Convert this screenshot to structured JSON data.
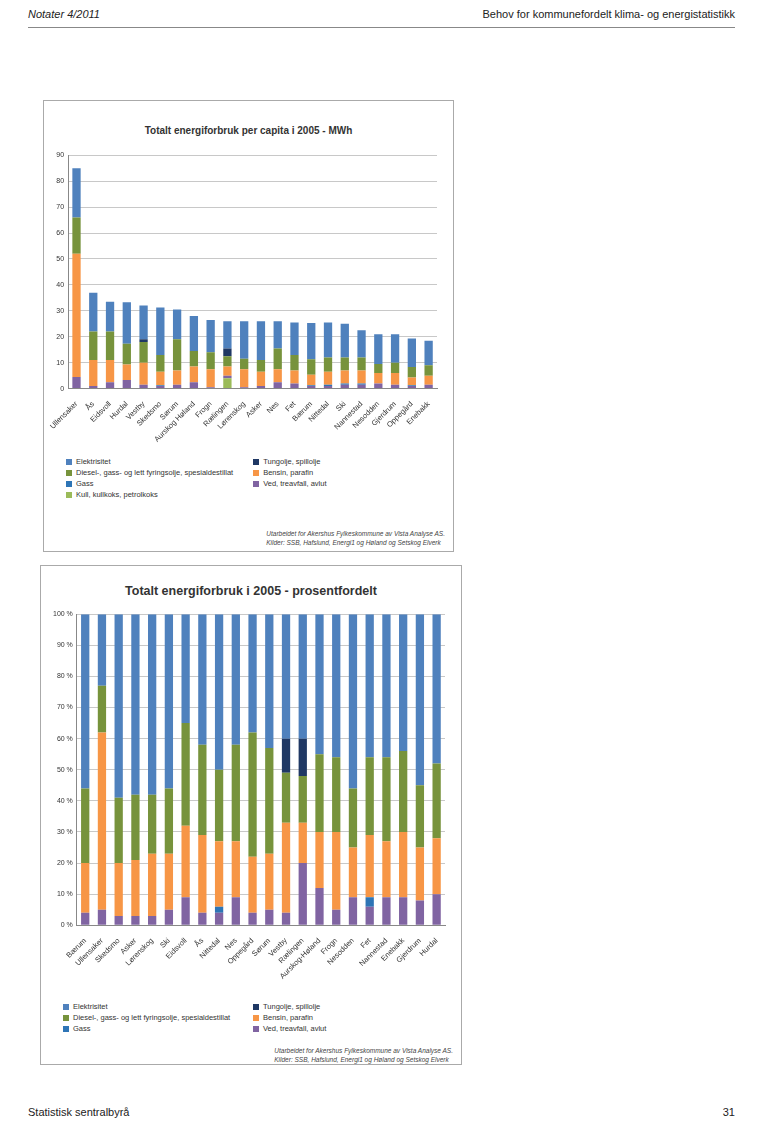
{
  "header": {
    "left": "Notater 4/2011",
    "right": "Behov for kommunefordelt klima- og energistatistikk"
  },
  "footer": {
    "left": "Statistisk sentralbyrå",
    "right": "31"
  },
  "chart_data": [
    {
      "type": "bar",
      "title": "Totalt energiforbruk per capita i 2005 - MWh",
      "categories": [
        "Ullensaker",
        "Ås",
        "Eidsvoll",
        "Hurdal",
        "Vestby",
        "Skedsmo",
        "Sørum",
        "Aurskog Høland",
        "Frogn",
        "Rælingen",
        "Lørenskog",
        "Asker",
        "Nes",
        "Fet",
        "Bærum",
        "Nittedal",
        "Ski",
        "Nannestad",
        "Nesodden",
        "Gjerdrum",
        "Oppegård",
        "Enebakk"
      ],
      "series": [
        {
          "name": "Elektrisitet",
          "color": "#4f81bd",
          "values": [
            19,
            15,
            11.5,
            16,
            13,
            18.3,
            11.5,
            13.5,
            12.5,
            10.5,
            14.5,
            15,
            10.5,
            12.5,
            14,
            13.5,
            13,
            10.5,
            11.5,
            11,
            11,
            9.5
          ]
        },
        {
          "name": "Tungolje, spillolje",
          "color": "#1f3864",
          "values": [
            0,
            0,
            0,
            0,
            1,
            0,
            0,
            0,
            0,
            3,
            0,
            0,
            0,
            0,
            0,
            0,
            0,
            0,
            0,
            0,
            0,
            0
          ]
        },
        {
          "name": "Diesel-, gass- og lett fyringsolje, spesialdestillat",
          "color": "#77933c",
          "values": [
            14,
            11,
            11,
            8,
            8,
            6.5,
            12,
            6,
            6.5,
            4,
            4,
            4.5,
            8,
            6,
            6,
            5.5,
            5,
            5,
            3.5,
            4,
            4,
            4
          ]
        },
        {
          "name": "Bensin, parafin",
          "color": "#f79646",
          "values": [
            47.5,
            10,
            8.5,
            6,
            8.5,
            5.2,
            5.5,
            6,
            7,
            3.5,
            7,
            5.5,
            5,
            5,
            4,
            5,
            5,
            5,
            4,
            4.5,
            3,
            3.5
          ]
        },
        {
          "name": "Gass",
          "color": "#2e75b6",
          "values": [
            0,
            0,
            0,
            0,
            0,
            0.3,
            0,
            0,
            0,
            0,
            0,
            0,
            0,
            0,
            0.3,
            0.5,
            0.5,
            0.5,
            0,
            0,
            0.3,
            0
          ]
        },
        {
          "name": "Ved, treavfall, avlut",
          "color": "#8064a2",
          "values": [
            4.5,
            1,
            2.5,
            3.3,
            1.5,
            1,
            1.5,
            2.5,
            0.5,
            1,
            0.5,
            1,
            2.5,
            2,
            1,
            1,
            1.5,
            1.5,
            2,
            1.5,
            1,
            1.5
          ]
        },
        {
          "name": "Kull, kullkoks, petrolkoks",
          "color": "#9bbb59",
          "values": [
            0,
            0,
            0,
            0,
            0,
            0,
            0,
            0,
            0,
            4,
            0,
            0,
            0,
            0,
            0,
            0,
            0,
            0,
            0,
            0,
            0,
            0
          ]
        }
      ],
      "ylim": [
        0,
        90
      ],
      "yticks": [
        0,
        10,
        20,
        30,
        40,
        50,
        60,
        70,
        80,
        90
      ],
      "stacked": true,
      "grid": true,
      "legend": "bottom",
      "annotations": [
        "Utarbeidet for Akershus Fylkeskommune av Vista Analyse AS.",
        "Kilder: SSB, Hafslund, Energi1 og Høland og Setskog Elverk"
      ]
    },
    {
      "type": "bar",
      "title": "Totalt energiforbruk i 2005 - prosentfordelt",
      "categories": [
        "Bærum",
        "Ullensaker",
        "Skedsmo",
        "Asker",
        "Lørenskog",
        "Ski",
        "Eidsvoll",
        "Ås",
        "Nittedal",
        "Nes",
        "Oppegård",
        "Sørum",
        "Vestby",
        "Rælingen",
        "Aurskog-Høland",
        "Frogn",
        "Nesodden",
        "Fet",
        "Nannestad",
        "Enebakk",
        "Gjerdrum",
        "Hurdal"
      ],
      "series": [
        {
          "name": "Elektrisitet",
          "color": "#4f81bd",
          "values": [
            56,
            23,
            59,
            58,
            58,
            56,
            35,
            42,
            50,
            42,
            38,
            43,
            40,
            40,
            45,
            46,
            56,
            46,
            46,
            44,
            55,
            48
          ]
        },
        {
          "name": "Tungolje, spillolje",
          "color": "#1f3864",
          "values": [
            0,
            0,
            0,
            0,
            0,
            0,
            0,
            0,
            0,
            0,
            0,
            0,
            11,
            12,
            0,
            0,
            0,
            0,
            0,
            0,
            0,
            0
          ]
        },
        {
          "name": "Diesel-, gass- og lett fyringsolje, spesialdestillat",
          "color": "#77933c",
          "values": [
            24,
            15,
            21,
            21,
            19,
            21,
            33,
            29,
            23,
            31,
            40,
            34,
            16,
            15,
            25,
            24,
            19,
            25,
            27,
            26,
            20,
            24
          ]
        },
        {
          "name": "Bensin, parafin",
          "color": "#f79646",
          "values": [
            16,
            57,
            17,
            18,
            20,
            18,
            23,
            25,
            21,
            18,
            18,
            18,
            29,
            13,
            18,
            25,
            16,
            20,
            18,
            21,
            17,
            18
          ]
        },
        {
          "name": "Gass",
          "color": "#2e75b6",
          "values": [
            0,
            0,
            0,
            0,
            0,
            0,
            0,
            0,
            2,
            0,
            0,
            0,
            0,
            0,
            0,
            0,
            0,
            3,
            0,
            0,
            0,
            0
          ]
        },
        {
          "name": "Ved, treavfall, avlut",
          "color": "#8064a2",
          "values": [
            4,
            5,
            3,
            3,
            3,
            5,
            9,
            4,
            4,
            9,
            4,
            5,
            4,
            20,
            12,
            5,
            9,
            6,
            9,
            9,
            8,
            10
          ]
        }
      ],
      "ylim": [
        0,
        100
      ],
      "yticks": [
        {
          "value": 0,
          "label": "0 %"
        },
        {
          "value": 10,
          "label": "10 %"
        },
        {
          "value": 20,
          "label": "20 %"
        },
        {
          "value": 30,
          "label": "30 %"
        },
        {
          "value": 40,
          "label": "40 %"
        },
        {
          "value": 50,
          "label": "50 %"
        },
        {
          "value": 60,
          "label": "60 %"
        },
        {
          "value": 70,
          "label": "70 %"
        },
        {
          "value": 80,
          "label": "80 %"
        },
        {
          "value": 90,
          "label": "90 %"
        },
        {
          "value": 100,
          "label": "100 %"
        }
      ],
      "stacked": true,
      "grid": true,
      "legend": "bottom",
      "annotations": [
        "Utarbeidet for Akershus Fylkeskommune av Vista Analyse AS.",
        "Kilder: SSB, Hafslund, Energi1 og Høland og Setskog Elverk"
      ]
    }
  ]
}
